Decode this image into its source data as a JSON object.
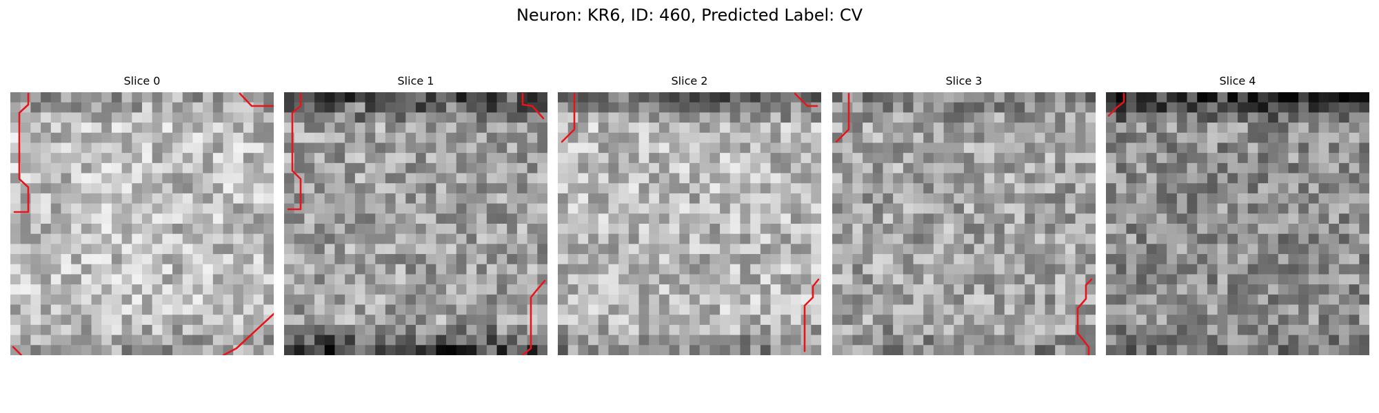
{
  "figure": {
    "title": "Neuron: KR6, ID: 460, Predicted Label: CV",
    "overlay_color": "#e8141a"
  },
  "slices": [
    {
      "title": "Slice 0",
      "seed": 11,
      "tone": 0.74,
      "dark_top": 0.16,
      "dark_bottom": 0.15
    },
    {
      "title": "Slice 1",
      "seed": 23,
      "tone": 0.63,
      "dark_top": 0.34,
      "dark_bottom": 0.4
    },
    {
      "title": "Slice 2",
      "seed": 37,
      "tone": 0.72,
      "dark_top": 0.3,
      "dark_bottom": 0.22
    },
    {
      "title": "Slice 3",
      "seed": 41,
      "tone": 0.64,
      "dark_top": 0.16,
      "dark_bottom": 0.1
    },
    {
      "title": "Slice 4",
      "seed": 53,
      "tone": 0.56,
      "dark_top": 0.42,
      "dark_bottom": 0.12
    }
  ]
}
